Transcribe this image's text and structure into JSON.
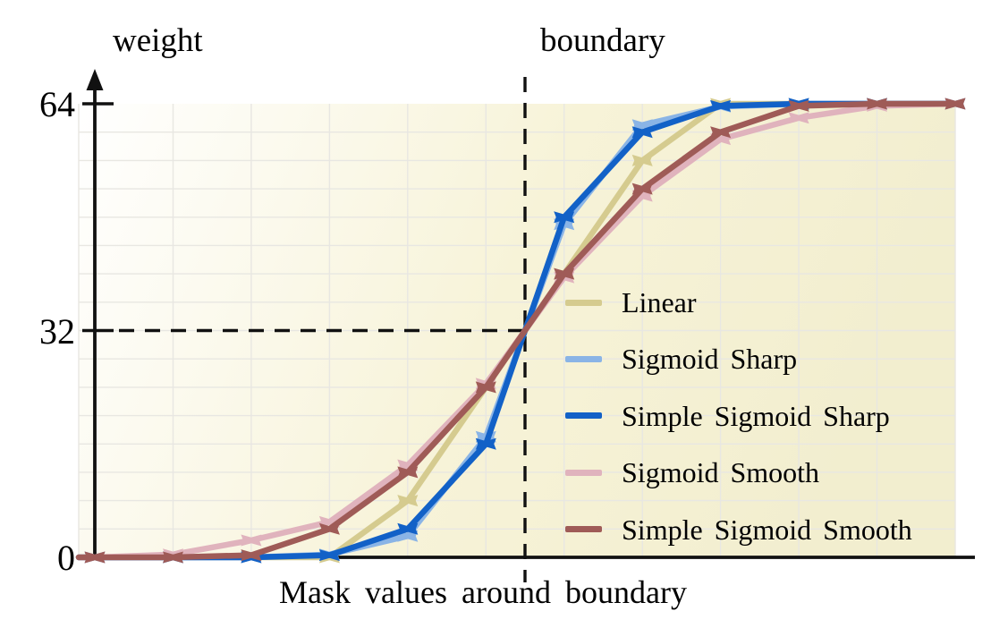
{
  "labels": {
    "y_axis_title": "weight",
    "boundary_label": "boundary",
    "x_axis_label": "Mask values around boundary"
  },
  "y_ticks": [
    {
      "value": 64,
      "label": "64"
    },
    {
      "value": 32,
      "label": "32"
    },
    {
      "value": 0,
      "label": "0"
    }
  ],
  "chart_data": {
    "type": "line",
    "title": "",
    "xlabel": "Mask values around boundary",
    "ylabel": "weight",
    "x": [
      0,
      1,
      2,
      3,
      4,
      5,
      6,
      7,
      8,
      9,
      10,
      11
    ],
    "x_note": "12 mask-value sample points; dashed boundary line sits midway between points 5 and 6 (x = 5.5)",
    "ylim": [
      0,
      64
    ],
    "y_tick_values": [
      0,
      32,
      64
    ],
    "y_grid_step": 4,
    "boundary_x": 5.5,
    "boundary_weight": 32,
    "grid": true,
    "legend_position": "center-right, no frame",
    "marker": "bowtie",
    "background_gradient": [
      "#ffffff",
      "#f7f3d8",
      "#f2eecf"
    ],
    "grid_color": "#e8e7e2",
    "axis_color": "#111111",
    "series": [
      {
        "name": "Linear",
        "color": "#d5cb8f",
        "values": [
          0,
          0,
          0,
          0,
          8,
          24,
          40,
          56,
          64,
          64,
          64,
          64
        ]
      },
      {
        "name": "Sigmoid Sharp",
        "color": "#8ab4e6",
        "values": [
          0,
          0,
          0,
          0.4,
          3,
          17,
          47,
          61,
          63.6,
          64,
          64,
          64
        ]
      },
      {
        "name": "Simple Sigmoid Sharp",
        "color": "#1261c7",
        "values": [
          0,
          0,
          0,
          0.3,
          4,
          16,
          48,
          60,
          63.7,
          64,
          64,
          64
        ]
      },
      {
        "name": "Sigmoid Smooth",
        "color": "#e0b3bd",
        "values": [
          0,
          0.4,
          2.4,
          5,
          13,
          24.5,
          39.5,
          51,
          59,
          62,
          63.7,
          64
        ]
      },
      {
        "name": "Simple Sigmoid Smooth",
        "color": "#9f5b57",
        "values": [
          0,
          0,
          0.3,
          4,
          12,
          24,
          40,
          52,
          60,
          63.7,
          64,
          64
        ]
      }
    ]
  }
}
